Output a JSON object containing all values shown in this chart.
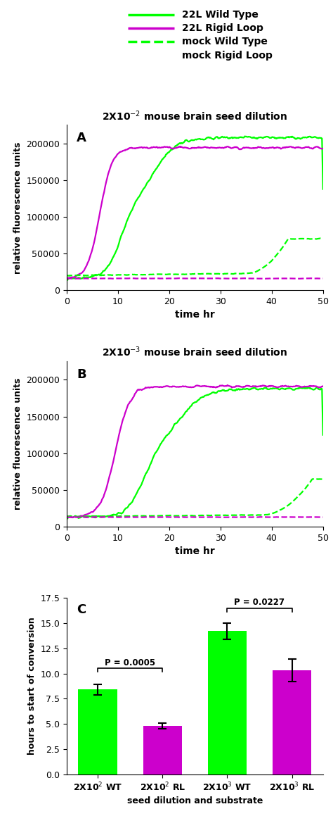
{
  "legend_labels": [
    "22L Wild Type",
    "22L Rigid Loop",
    "mock Wild Type",
    "mock Rigid Loop"
  ],
  "legend_colors": [
    "#00ff00",
    "#cc00cc",
    "#00ff00",
    "#cc00cc"
  ],
  "legend_styles": [
    "solid",
    "solid",
    "dashed",
    "dashed"
  ],
  "title_A": "2X10$^{-2}$ mouse brain seed dilution",
  "title_B": "2X10$^{-3}$ mouse brain seed dilution",
  "panel_A_label": "A",
  "panel_B_label": "B",
  "panel_C_label": "C",
  "ylabel_AB": "relative fluorescence units",
  "xlabel_AB": "time hr",
  "xlim_AB": [
    0,
    50
  ],
  "ylim_AB": [
    0,
    225000
  ],
  "xticks_AB": [
    0,
    10,
    20,
    30,
    40,
    50
  ],
  "yticks_AB": [
    0,
    50000,
    100000,
    150000,
    200000
  ],
  "ytick_labels_AB": [
    "0",
    "50000",
    "100000",
    "150000",
    "200000"
  ],
  "green_color": "#00ff00",
  "purple_color": "#cc00cc",
  "bar_values": [
    8.4,
    4.8,
    14.2,
    10.3
  ],
  "bar_errors": [
    0.5,
    0.3,
    0.8,
    1.1
  ],
  "bar_colors": [
    "#00ff00",
    "#cc00cc",
    "#00ff00",
    "#cc00cc"
  ],
  "bar_xlabels": [
    "2X10$^{2}$ WT",
    "2X10$^{2}$ RL",
    "2X10$^{3}$ WT",
    "2X10$^{3}$ RL"
  ],
  "bar_xlabel": "seed dilution and substrate",
  "bar_ylabel": "hours to start of conversion",
  "bar_ylim": [
    0,
    17.5
  ],
  "bar_yticks": [
    0.0,
    2.5,
    5.0,
    7.5,
    10.0,
    12.5,
    15.0,
    17.5
  ],
  "pval1_text": "P = 0.0005",
  "pval1_y": 10.5,
  "pval2_text": "P = 0.0227",
  "pval2_y": 16.5
}
